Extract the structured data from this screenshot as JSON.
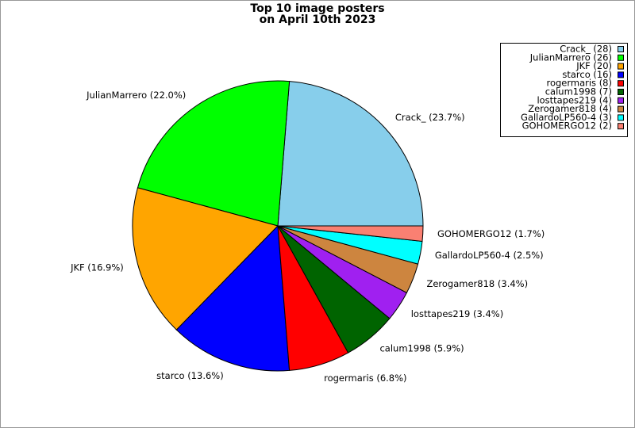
{
  "chart_data": {
    "type": "pie",
    "title": "Top 10 image posters",
    "subtitle": "on April 10th 2023",
    "values": [
      28,
      26,
      20,
      16,
      8,
      7,
      4,
      4,
      3,
      2
    ],
    "legend_labels": [
      "Crack_ (28)",
      "JulianMarrero (26)",
      "JKF (20)",
      "starco (16)",
      "rogermaris (8)",
      "calum1998 (7)",
      "losttapes219 (4)",
      "Zerogamer818 (4)",
      "GallardoLP560-4 (3)",
      "GOHOMERGO12 (2)"
    ],
    "slice_labels": [
      "Crack_ (23.7%)",
      "JulianMarrero (22.0%)",
      "JKF (16.9%)",
      "starco (13.6%)",
      "rogermaris (6.8%)",
      "calum1998 (5.9%)",
      "losttapes219 (3.4%)",
      "Zerogamer818 (3.4%)",
      "GallardoLP560-4 (2.5%)",
      "GOHOMERGO12 (1.7%)"
    ],
    "colors": [
      "#87ceeb",
      "#00ff00",
      "#ffa500",
      "#0000ff",
      "#ff0000",
      "#006400",
      "#a020f0",
      "#cd853f",
      "#00ffff",
      "#fa8072"
    ],
    "legend_position": "upper right"
  }
}
